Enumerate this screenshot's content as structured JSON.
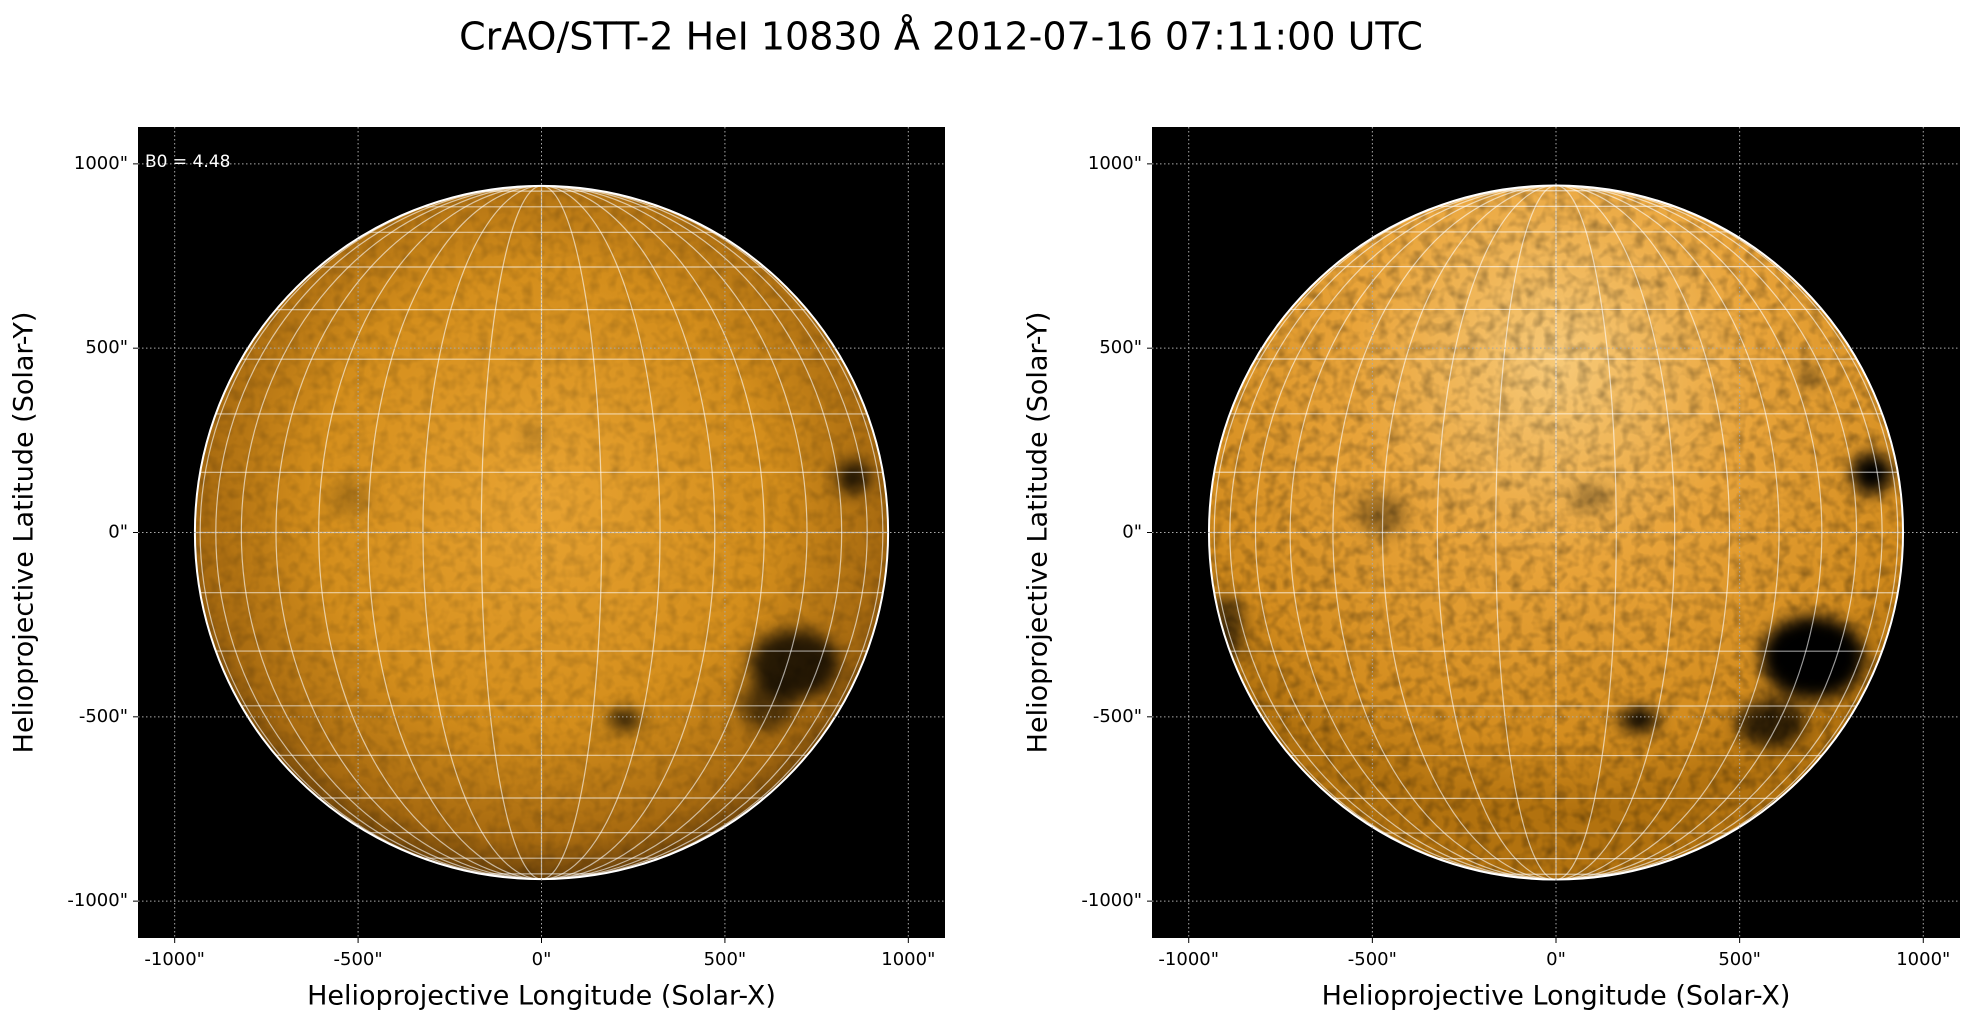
{
  "title": "CrAO/STT-2 HeI 10830 Å 2012-07-16 07:11:00 UTC",
  "chart_data": [
    {
      "type": "image",
      "xlabel": "Helioprojective Longitude (Solar-X)",
      "ylabel": "Helioprojective Latitude (Solar-Y)",
      "annotation": "B0 = 4.48",
      "xlim": [
        -1100,
        1100
      ],
      "ylim": [
        -1100,
        1100
      ],
      "xticks": [
        {
          "value": -1000,
          "label": "-1000\""
        },
        {
          "value": -500,
          "label": "-500\""
        },
        {
          "value": 0,
          "label": "0\""
        },
        {
          "value": 500,
          "label": "500\""
        },
        {
          "value": 1000,
          "label": "1000\""
        }
      ],
      "yticks": [
        {
          "value": -1000,
          "label": "-1000\""
        },
        {
          "value": -500,
          "label": "-500\""
        },
        {
          "value": 0,
          "label": "0\""
        },
        {
          "value": 500,
          "label": "500\""
        },
        {
          "value": 1000,
          "label": "1000\""
        }
      ],
      "grid": true
    },
    {
      "type": "image",
      "xlabel": "Helioprojective Longitude (Solar-X)",
      "ylabel": "Helioprojective Latitude (Solar-Y)",
      "xlim": [
        -1100,
        1100
      ],
      "ylim": [
        -1100,
        1100
      ],
      "xticks": [
        {
          "value": -1000,
          "label": "-1000\""
        },
        {
          "value": -500,
          "label": "-500\""
        },
        {
          "value": 0,
          "label": "0\""
        },
        {
          "value": 500,
          "label": "500\""
        },
        {
          "value": 1000,
          "label": "1000\""
        }
      ],
      "yticks": [
        {
          "value": -1000,
          "label": "-1000\""
        },
        {
          "value": -500,
          "label": "-500\""
        },
        {
          "value": 0,
          "label": "0\""
        },
        {
          "value": 500,
          "label": "500\""
        },
        {
          "value": 1000,
          "label": "1000\""
        }
      ],
      "grid": true
    }
  ]
}
